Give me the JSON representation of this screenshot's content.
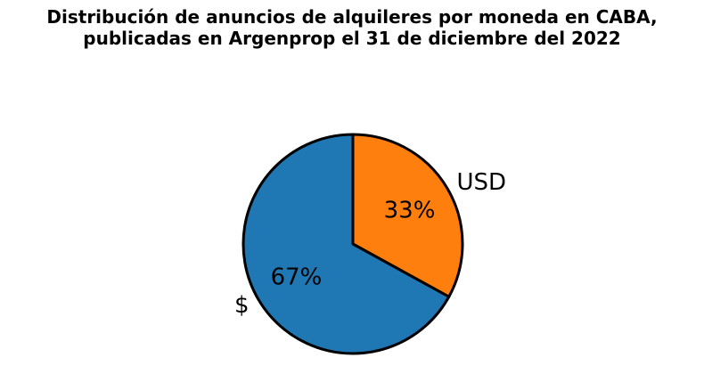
{
  "chart_data": {
    "type": "pie",
    "title_lines": [
      "Distribución de anuncios de alquileres por moneda en CABA,",
      "publicadas en Argenprop el 31 de diciembre del 2022"
    ],
    "slices": [
      {
        "label": "USD",
        "value": 33,
        "pct_label": "33%",
        "color": "#ff7f0e"
      },
      {
        "label": "$",
        "value": 67,
        "pct_label": "67%",
        "color": "#1f77b4"
      }
    ],
    "start_angle_deg": 90,
    "direction": "clockwise",
    "edge_color": "#000000",
    "legend": "none"
  }
}
